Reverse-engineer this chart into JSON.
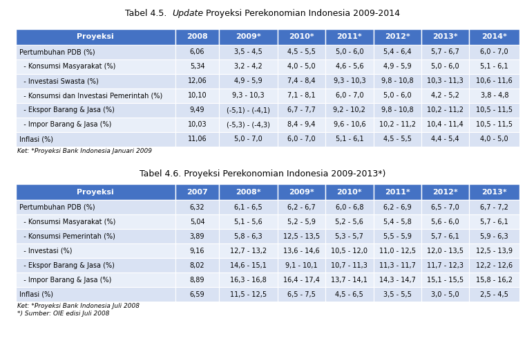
{
  "title1_pre": "Tabel 4.5.  ",
  "title1_italic": "Update",
  "title1_post": " Proyeksi Perekonomian Indonesia 2009-2014",
  "title2": "Tabel 4.6. Proyeksi Perekonomian Indonesia 2009-2013",
  "title2_bold_suffix": "*)",
  "header_bg": "#4472C4",
  "row_bg_even": "#D9E2F3",
  "row_bg_odd": "#E9EFF9",
  "header_text": "#FFFFFF",
  "body_text": "#000000",
  "bg_color": "#FFFFFF",
  "table1_cols": [
    "Proyeksi",
    "2008",
    "2009*",
    "2010*",
    "2011*",
    "2012*",
    "2013*",
    "2014*"
  ],
  "table1_rows": [
    [
      "Pertumbuhan PDB (%)",
      "6,06",
      "3,5 - 4,5",
      "4,5 - 5,5",
      "5,0 - 6,0",
      "5,4 - 6,4",
      "5,7 - 6,7",
      "6,0 - 7,0"
    ],
    [
      "  - Konsumsi Masyarakat (%)",
      "5,34",
      "3,2 - 4,2",
      "4,0 - 5,0",
      "4,6 - 5,6",
      "4,9 - 5,9",
      "5,0 - 6,0",
      "5,1 - 6,1"
    ],
    [
      "  - Investasi Swasta (%)",
      "12,06",
      "4,9 - 5,9",
      "7,4 - 8,4",
      "9,3 - 10,3",
      "9,8 - 10,8",
      "10,3 - 11,3",
      "10,6 - 11,6"
    ],
    [
      "  - Konsumsi dan Investasi Pemerintah (%)",
      "10,10",
      "9,3 - 10,3",
      "7,1 - 8,1",
      "6,0 - 7,0",
      "5,0 - 6,0",
      "4,2 - 5,2",
      "3,8 - 4,8"
    ],
    [
      "  - Ekspor Barang & Jasa (%)",
      "9,49",
      "(-5,1) - (-4,1)",
      "6,7 - 7,7",
      "9,2 - 10,2",
      "9,8 - 10,8",
      "10,2 - 11,2",
      "10,5 - 11,5"
    ],
    [
      "  - Impor Barang & Jasa (%)",
      "10,03",
      "(-5,3) - (-4,3)",
      "8,4 - 9,4",
      "9,6 - 10,6",
      "10,2 - 11,2",
      "10,4 - 11,4",
      "10,5 - 11,5"
    ],
    [
      "Inflasi (%)",
      "11,06",
      "5,0 - 7,0",
      "6,0 - 7,0",
      "5,1 - 6,1",
      "4,5 - 5,5",
      "4,4 - 5,4",
      "4,0 - 5,0"
    ]
  ],
  "table1_footnote": "Ket: *Proyeksi Bank Indonesia Januari 2009",
  "table2_cols": [
    "Proyeksi",
    "2007",
    "2008*",
    "2009*",
    "2010*",
    "2011*",
    "2012*",
    "2013*"
  ],
  "table2_rows": [
    [
      "Pertumbuhan PDB (%)",
      "6,32",
      "6,1 - 6,5",
      "6,2 - 6,7",
      "6,0 - 6,8",
      "6,2 - 6,9",
      "6,5 - 7,0",
      "6,7 - 7,2"
    ],
    [
      "  - Konsumsi Masyarakat (%)",
      "5,04",
      "5,1 - 5,6",
      "5,2 - 5,9",
      "5,2 - 5,6",
      "5,4 - 5,8",
      "5,6 - 6,0",
      "5,7 - 6,1"
    ],
    [
      "  - Konsumsi Pemerintah (%)",
      "3,89",
      "5,8 - 6,3",
      "12,5 - 13,5",
      "5,3 - 5,7",
      "5,5 - 5,9",
      "5,7 - 6,1",
      "5,9 - 6,3"
    ],
    [
      "  - Investasi (%)",
      "9,16",
      "12,7 - 13,2",
      "13,6 - 14,6",
      "10,5 - 12,0",
      "11,0 - 12,5",
      "12,0 - 13,5",
      "12,5 - 13,9"
    ],
    [
      "  - Ekspor Barang & Jasa (%)",
      "8,02",
      "14,6 - 15,1",
      "9,1 - 10,1",
      "10,7 - 11,3",
      "11,3 - 11,7",
      "11,7 - 12,3",
      "12,2 - 12,6"
    ],
    [
      "  - Impor Barang & Jasa (%)",
      "8,89",
      "16,3 - 16,8",
      "16,4 - 17,4",
      "13,7 - 14,1",
      "14,3 - 14,7",
      "15,1 - 15,5",
      "15,8 - 16,2"
    ],
    [
      "Inflasi (%)",
      "6,59",
      "11,5 - 12,5",
      "6,5 - 7,5",
      "4,5 - 6,5",
      "3,5 - 5,5",
      "3,0 - 5,0",
      "2,5 - 4,5"
    ]
  ],
  "table2_footnote1": "Ket: *Proyeksi Bank Indonesia Juli 2008",
  "table2_footnote2": "*) Sumber: OIE edisi Juli 2008",
  "col_ratios": [
    0.3,
    0.082,
    0.11,
    0.09,
    0.09,
    0.09,
    0.09,
    0.095
  ],
  "title_fontsize": 9,
  "header_fontsize": 8,
  "cell_fontsize": 7,
  "footnote_fontsize": 6.5
}
